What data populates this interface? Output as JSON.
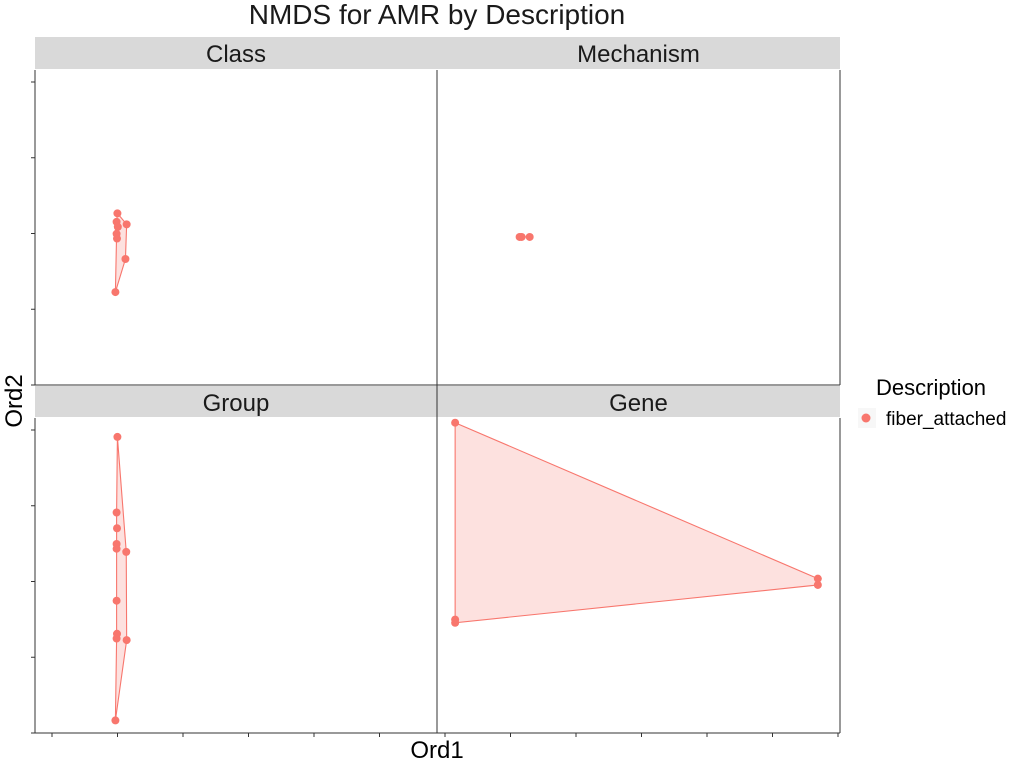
{
  "chart_data": {
    "type": "scatter",
    "title": "NMDS for AMR by Description",
    "xlabel": "Ord1",
    "ylabel": "Ord2",
    "xlim": [
      0,
      1
    ],
    "ylim": [
      0,
      1
    ],
    "grid": false,
    "legend": {
      "title": "Description",
      "placement": "right",
      "entries": [
        {
          "label": "fiber_attached",
          "color": "#F8766D"
        }
      ]
    },
    "series_color": "#F8766D",
    "facets": [
      {
        "name": "Class",
        "points": [
          [
            0.205,
            0.545
          ],
          [
            0.203,
            0.518
          ],
          [
            0.206,
            0.502
          ],
          [
            0.204,
            0.465
          ],
          [
            0.228,
            0.51
          ],
          [
            0.203,
            0.48
          ],
          [
            0.225,
            0.4
          ],
          [
            0.2,
            0.295
          ]
        ],
        "hull": [
          [
            0.205,
            0.545
          ],
          [
            0.228,
            0.51
          ],
          [
            0.225,
            0.4
          ],
          [
            0.2,
            0.295
          ],
          [
            0.203,
            0.48
          ],
          [
            0.203,
            0.518
          ]
        ]
      },
      {
        "name": "Mechanism",
        "points": [
          [
            0.205,
            0.47
          ],
          [
            0.23,
            0.47
          ],
          [
            0.21,
            0.47
          ]
        ],
        "hull": [
          [
            0.205,
            0.47
          ],
          [
            0.23,
            0.47
          ]
        ]
      },
      {
        "name": "Group",
        "points": [
          [
            0.205,
            0.94
          ],
          [
            0.203,
            0.7
          ],
          [
            0.204,
            0.65
          ],
          [
            0.203,
            0.6
          ],
          [
            0.203,
            0.585
          ],
          [
            0.227,
            0.575
          ],
          [
            0.203,
            0.42
          ],
          [
            0.204,
            0.315
          ],
          [
            0.203,
            0.3
          ],
          [
            0.228,
            0.295
          ],
          [
            0.2,
            0.04
          ]
        ],
        "hull": [
          [
            0.205,
            0.94
          ],
          [
            0.227,
            0.575
          ],
          [
            0.228,
            0.295
          ],
          [
            0.2,
            0.04
          ],
          [
            0.203,
            0.3
          ],
          [
            0.203,
            0.6
          ],
          [
            0.203,
            0.7
          ]
        ]
      },
      {
        "name": "Gene",
        "points": [
          [
            0.045,
            0.985
          ],
          [
            0.945,
            0.49
          ],
          [
            0.945,
            0.47
          ],
          [
            0.045,
            0.35
          ],
          [
            0.045,
            0.36
          ]
        ],
        "hull": [
          [
            0.045,
            0.985
          ],
          [
            0.945,
            0.49
          ],
          [
            0.945,
            0.47
          ],
          [
            0.045,
            0.35
          ]
        ]
      }
    ]
  }
}
